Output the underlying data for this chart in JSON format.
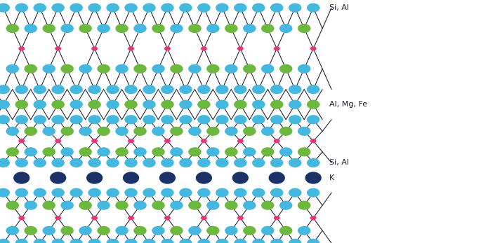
{
  "background_color": "#ffffff",
  "cyan_color": "#45b8e0",
  "green_color": "#6db83f",
  "pink_color": "#e8357a",
  "dark_blue_color": "#1a3268",
  "line_color": "#1a1a2a",
  "labels": [
    "Si, Al",
    "Al, Mg, Fe",
    "Si, Al",
    "K"
  ],
  "figsize": [
    6.85,
    3.47
  ],
  "dpi": 100
}
